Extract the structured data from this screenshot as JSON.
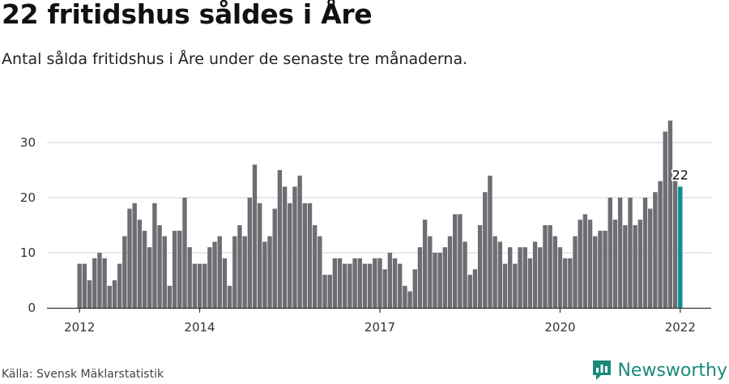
{
  "title": "22 fritidshus såldes i Åre",
  "subtitle": "Antal sålda fritidshus i Åre under de senaste tre månaderna.",
  "source": "Källa: Svensk Mäklarstatistik",
  "brand": "Newsworthy",
  "colors": {
    "bar": "#6e6d73",
    "highlight": "#0e8e8e",
    "grid": "#d9d9d9",
    "axis": "#333333",
    "brand": "#1a8a7a"
  },
  "chart_data": {
    "type": "bar",
    "title": "22 fritidshus såldes i Åre",
    "xlabel": "",
    "ylabel": "",
    "ylim": [
      0,
      35
    ],
    "yticks": [
      0,
      10,
      20,
      30
    ],
    "xticks": [
      {
        "label": "2012",
        "index": 0
      },
      {
        "label": "2014",
        "index": 24
      },
      {
        "label": "2017",
        "index": 60
      },
      {
        "label": "2020",
        "index": 96
      },
      {
        "label": "2022",
        "index": 120
      }
    ],
    "highlight": {
      "index": 120,
      "label": "22"
    },
    "values": [
      8,
      8,
      5,
      9,
      10,
      9,
      4,
      5,
      8,
      13,
      18,
      19,
      16,
      14,
      11,
      19,
      15,
      13,
      4,
      14,
      14,
      20,
      11,
      8,
      8,
      8,
      11,
      12,
      13,
      9,
      4,
      13,
      15,
      13,
      20,
      26,
      19,
      12,
      13,
      18,
      25,
      22,
      19,
      22,
      24,
      19,
      19,
      15,
      13,
      6,
      6,
      9,
      9,
      8,
      8,
      9,
      9,
      8,
      8,
      9,
      9,
      7,
      10,
      9,
      8,
      4,
      3,
      7,
      11,
      16,
      13,
      10,
      10,
      11,
      13,
      17,
      17,
      12,
      6,
      7,
      15,
      21,
      24,
      13,
      12,
      8,
      11,
      8,
      11,
      11,
      9,
      12,
      11,
      15,
      15,
      13,
      11,
      9,
      9,
      13,
      16,
      17,
      16,
      13,
      14,
      14,
      20,
      16,
      20,
      15,
      20,
      15,
      16,
      20,
      18,
      21,
      23,
      32,
      34,
      24,
      22
    ]
  }
}
